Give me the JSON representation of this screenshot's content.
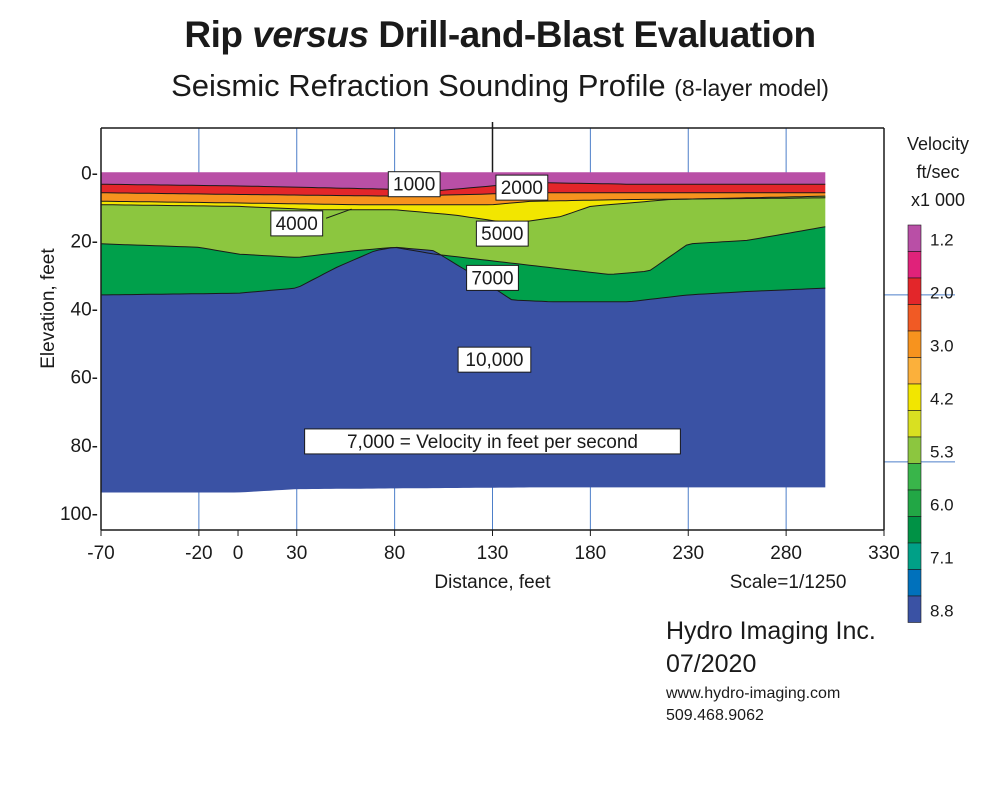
{
  "header": {
    "title_pre": "Rip ",
    "title_em": "versus",
    "title_post": " Drill-and-Blast Evaluation",
    "subtitle_main": "Seismic Refraction Sounding Profile",
    "subtitle_small": "(8-layer model)"
  },
  "chart_data": {
    "type": "area",
    "xlabel": "Distance, feet",
    "ylabel": "Elevation, feet",
    "scale_note": "Scale=1/1250",
    "x_ticks": [
      "-70",
      "-20",
      "0",
      "30",
      "80",
      "130",
      "180",
      "230",
      "280",
      "330"
    ],
    "y_ticks": [
      "0-",
      "20-",
      "40-",
      "60-",
      "80-",
      "100-"
    ],
    "xlim": [
      -70,
      330
    ],
    "ylim": [
      -13,
      105
    ],
    "profile_x": [
      -70,
      300
    ],
    "series": [
      {
        "name": "1.2",
        "color": "#b94fa6",
        "top": [
          [
            -70,
            0
          ],
          [
            300,
            0
          ]
        ],
        "bottom": [
          [
            -70,
            3.5
          ],
          [
            0,
            4
          ],
          [
            80,
            5
          ],
          [
            100,
            5.5
          ],
          [
            130,
            4
          ],
          [
            150,
            3
          ],
          [
            200,
            3.5
          ],
          [
            300,
            3.5
          ]
        ]
      },
      {
        "name": "2.0",
        "color": "#e3262a",
        "bottom": [
          [
            -70,
            6
          ],
          [
            0,
            6.5
          ],
          [
            80,
            7
          ],
          [
            120,
            6.5
          ],
          [
            150,
            6
          ],
          [
            200,
            6
          ],
          [
            300,
            6
          ]
        ]
      },
      {
        "name": "3.0",
        "color": "#f7931e",
        "bottom": [
          [
            -70,
            8.5
          ],
          [
            0,
            9
          ],
          [
            60,
            9.5
          ],
          [
            100,
            9.5
          ],
          [
            130,
            9.5
          ],
          [
            150,
            8.5
          ],
          [
            200,
            8
          ],
          [
            300,
            7.5
          ]
        ]
      },
      {
        "name": "4.2",
        "color": "#f2e600",
        "bottom": [
          [
            -70,
            9.5
          ],
          [
            0,
            10
          ],
          [
            40,
            11
          ],
          [
            80,
            11
          ],
          [
            110,
            12.5
          ],
          [
            140,
            15
          ],
          [
            165,
            13
          ],
          [
            180,
            10
          ],
          [
            220,
            8
          ],
          [
            300,
            7
          ]
        ]
      },
      {
        "name": "5.3",
        "color": "#8cc63f",
        "bottom": [
          [
            -70,
            21
          ],
          [
            -20,
            22
          ],
          [
            0,
            24
          ],
          [
            30,
            25
          ],
          [
            60,
            23
          ],
          [
            80,
            22
          ],
          [
            100,
            24
          ],
          [
            130,
            26
          ],
          [
            160,
            28
          ],
          [
            190,
            30
          ],
          [
            210,
            29
          ],
          [
            230,
            21
          ],
          [
            260,
            20
          ],
          [
            300,
            16
          ]
        ]
      },
      {
        "name": "6.0",
        "color": "#00a04b",
        "bottom": [
          [
            -70,
            36
          ],
          [
            0,
            35.5
          ],
          [
            30,
            34
          ],
          [
            50,
            28
          ],
          [
            70,
            23
          ],
          [
            80,
            22
          ],
          [
            100,
            23
          ],
          [
            120,
            30
          ],
          [
            140,
            37.5
          ],
          [
            160,
            38
          ],
          [
            200,
            38
          ],
          [
            230,
            36
          ],
          [
            260,
            35
          ],
          [
            300,
            34
          ]
        ]
      },
      {
        "name": "8.8",
        "color": "#3a52a4",
        "bottom": [
          [
            -70,
            94
          ],
          [
            0,
            94
          ],
          [
            30,
            93
          ],
          [
            150,
            92.5
          ],
          [
            300,
            92.5
          ]
        ]
      }
    ],
    "legend": [
      {
        "color": "#b94fa6",
        "label": "1.2"
      },
      {
        "color": "#e0227a",
        "label": ""
      },
      {
        "color": "#e3262a",
        "label": "2.0"
      },
      {
        "color": "#f15a24",
        "label": ""
      },
      {
        "color": "#f7931e",
        "label": "3.0"
      },
      {
        "color": "#fbb03b",
        "label": ""
      },
      {
        "color": "#f2e600",
        "label": "4.2"
      },
      {
        "color": "#d9e021",
        "label": ""
      },
      {
        "color": "#8cc63f",
        "label": "5.3"
      },
      {
        "color": "#39b54a",
        "label": ""
      },
      {
        "color": "#22a745",
        "label": "6.0"
      },
      {
        "color": "#009245",
        "label": ""
      },
      {
        "color": "#00a087",
        "label": "7.1"
      },
      {
        "color": "#0071bc",
        "label": ""
      },
      {
        "color": "#3a52a4",
        "label": "8.8"
      }
    ],
    "annotations": [
      {
        "text": "1000",
        "x": 90,
        "y": 3.5
      },
      {
        "text": "2000",
        "x": 145,
        "y": 4.5
      },
      {
        "text": "4000",
        "x": 30,
        "y": 15
      },
      {
        "text": "5000",
        "x": 135,
        "y": 18
      },
      {
        "text": "7000",
        "x": 130,
        "y": 31
      },
      {
        "text": "10,000",
        "x": 131,
        "y": 55
      },
      {
        "text": "7,000 = Velocity in feet per second",
        "x": 130,
        "y": 79
      }
    ],
    "legend_title": [
      "Velocity",
      "ft/sec",
      "x1 000"
    ]
  },
  "footer": {
    "company": "Hydro Imaging Inc.",
    "date": "07/2020",
    "website": "www.hydro-imaging.com",
    "phone": "509.468.9062"
  }
}
